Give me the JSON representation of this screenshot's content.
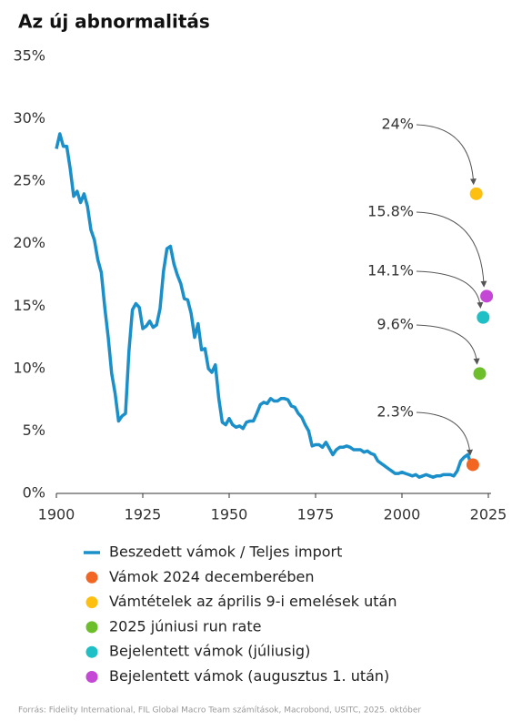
{
  "chart_data": {
    "type": "line",
    "title": "Az új abnormalitás",
    "source": "Forrás: Fidelity International, FIL Global Macro Team számítások, Macrobond, USITC, 2025. október",
    "xlim": [
      1900,
      2025
    ],
    "xticks": [
      1900,
      1925,
      1950,
      1975,
      2000,
      2025
    ],
    "ylim": [
      0,
      35
    ],
    "yticks": [
      {
        "value": 0,
        "label": "0%"
      },
      {
        "value": 5,
        "label": "5%"
      },
      {
        "value": 10,
        "label": "10%"
      },
      {
        "value": 15,
        "label": "15%"
      },
      {
        "value": 20,
        "label": "20%"
      },
      {
        "value": 25,
        "label": "25%"
      },
      {
        "value": 30,
        "label": "30%"
      },
      {
        "value": 35,
        "label": "35%"
      }
    ],
    "grid": false,
    "series": [
      {
        "name": "Beszedett vámok / Teljes import",
        "color": "#1a8fc9",
        "type": "line",
        "x": [
          1900,
          1901,
          1902,
          1903,
          1904,
          1905,
          1906,
          1907,
          1908,
          1909,
          1910,
          1911,
          1912,
          1913,
          1914,
          1915,
          1916,
          1917,
          1918,
          1919,
          1920,
          1921,
          1922,
          1923,
          1924,
          1925,
          1926,
          1927,
          1928,
          1929,
          1930,
          1931,
          1932,
          1933,
          1934,
          1935,
          1936,
          1937,
          1938,
          1939,
          1940,
          1941,
          1942,
          1943,
          1944,
          1945,
          1946,
          1947,
          1948,
          1949,
          1950,
          1951,
          1952,
          1953,
          1954,
          1955,
          1956,
          1957,
          1958,
          1959,
          1960,
          1961,
          1962,
          1963,
          1964,
          1965,
          1966,
          1967,
          1968,
          1969,
          1970,
          1971,
          1972,
          1973,
          1974,
          1975,
          1976,
          1977,
          1978,
          1979,
          1980,
          1981,
          1982,
          1983,
          1984,
          1985,
          1986,
          1987,
          1988,
          1989,
          1990,
          1991,
          1992,
          1993,
          1994,
          1995,
          1996,
          1997,
          1998,
          1999,
          2000,
          2001,
          2002,
          2003,
          2004,
          2005,
          2006,
          2007,
          2008,
          2009,
          2010,
          2011,
          2012,
          2013,
          2014,
          2015,
          2016,
          2017,
          2018,
          2019,
          2020
        ],
        "values": [
          27.6,
          28.8,
          27.8,
          27.8,
          26,
          23.8,
          24.2,
          23.3,
          24,
          23,
          21.1,
          20.3,
          18.7,
          17.7,
          14.9,
          12.5,
          9.6,
          8,
          5.8,
          6.2,
          6.4,
          11.4,
          14.7,
          15.2,
          14.9,
          13.2,
          13.4,
          13.8,
          13.3,
          13.5,
          14.8,
          17.8,
          19.6,
          19.8,
          18.4,
          17.5,
          16.8,
          15.6,
          15.5,
          14.4,
          12.5,
          13.6,
          11.5,
          11.6,
          10,
          9.7,
          10.3,
          7.6,
          5.7,
          5.5,
          6,
          5.5,
          5.3,
          5.4,
          5.2,
          5.7,
          5.8,
          5.8,
          6.4,
          7.1,
          7.3,
          7.2,
          7.6,
          7.4,
          7.4,
          7.6,
          7.6,
          7.5,
          7,
          6.9,
          6.4,
          6.1,
          5.5,
          5,
          3.8,
          3.9,
          3.9,
          3.7,
          4.1,
          3.6,
          3.1,
          3.5,
          3.7,
          3.7,
          3.8,
          3.7,
          3.5,
          3.5,
          3.5,
          3.3,
          3.4,
          3.2,
          3.1,
          2.6,
          2.4,
          2.2,
          2,
          1.8,
          1.6,
          1.6,
          1.7,
          1.6,
          1.5,
          1.4,
          1.5,
          1.3,
          1.4,
          1.5,
          1.4,
          1.3,
          1.4,
          1.4,
          1.5,
          1.5,
          1.5,
          1.4,
          1.8,
          2.6,
          2.9,
          3.1,
          2.4
        ]
      },
      {
        "name": "Vámok 2024 decemberében",
        "color": "#f26522",
        "type": "scatter",
        "x": [
          2020.5
        ],
        "values": [
          2.3
        ],
        "value_labels": [
          "2.3%"
        ]
      },
      {
        "name": "Vámtételek az április 9-i emelések után",
        "color": "#fdc010",
        "type": "scatter",
        "x": [
          2021.5
        ],
        "values": [
          24
        ],
        "value_labels": [
          "24%"
        ]
      },
      {
        "name": "2025 júniusi run rate",
        "color": "#6cbf2a",
        "type": "scatter",
        "x": [
          2022.5
        ],
        "values": [
          9.6
        ],
        "value_labels": [
          "9.6%"
        ]
      },
      {
        "name": "Bejelentett vámok (júliusig)",
        "color": "#1ebfc5",
        "type": "scatter",
        "x": [
          2023.5
        ],
        "values": [
          14.1
        ],
        "value_labels": [
          "14.1%"
        ]
      },
      {
        "name": "Bejelentett vámok (augusztus 1. után)",
        "color": "#c447d6",
        "type": "scatter",
        "x": [
          2024.5
        ],
        "values": [
          15.8
        ],
        "value_labels": [
          "15.8%"
        ]
      }
    ]
  }
}
